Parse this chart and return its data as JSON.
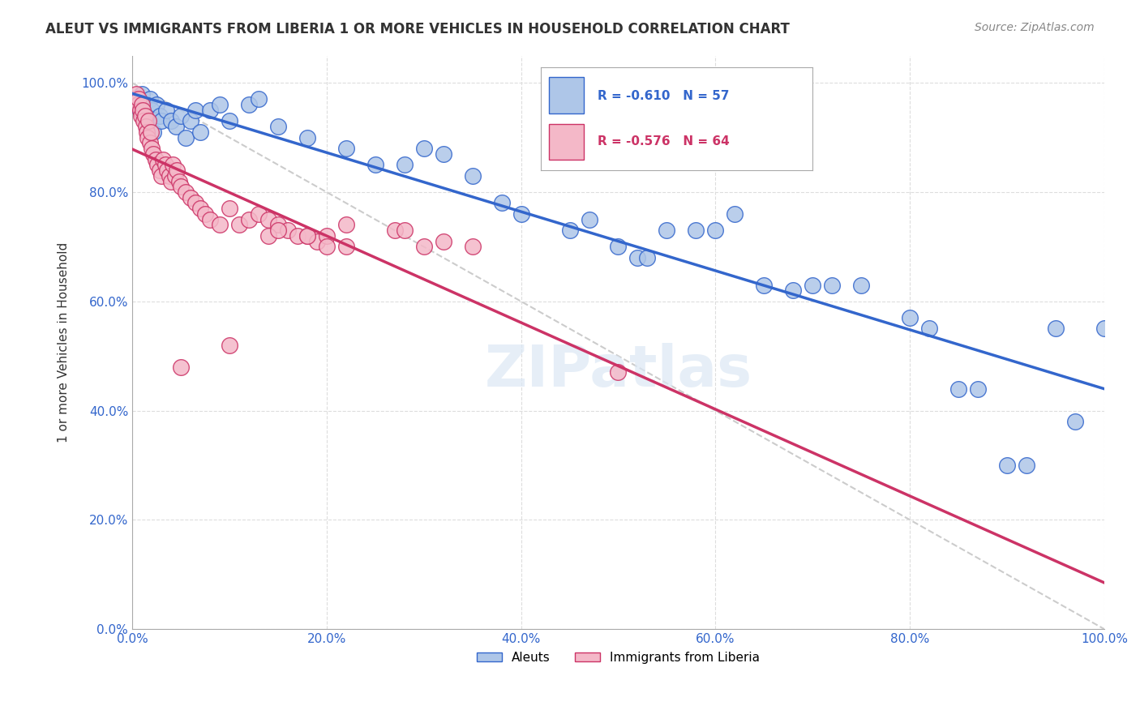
{
  "title": "ALEUT VS IMMIGRANTS FROM LIBERIA 1 OR MORE VEHICLES IN HOUSEHOLD CORRELATION CHART",
  "source": "Source: ZipAtlas.com",
  "ylabel": "1 or more Vehicles in Household",
  "legend_blue_r": "R = -0.610",
  "legend_blue_n": "N = 57",
  "legend_pink_r": "R = -0.576",
  "legend_pink_n": "N = 64",
  "legend_label_blue": "Aleuts",
  "legend_label_pink": "Immigrants from Liberia",
  "blue_color": "#aec6e8",
  "blue_line_color": "#3366cc",
  "pink_color": "#f4b8c8",
  "pink_line_color": "#cc3366",
  "diag_line_color": "#cccccc",
  "background_color": "#ffffff",
  "watermark": "ZIPatlas",
  "blue_points": [
    [
      0.005,
      0.97
    ],
    [
      0.008,
      0.95
    ],
    [
      0.01,
      0.98
    ],
    [
      0.012,
      0.96
    ],
    [
      0.015,
      0.93
    ],
    [
      0.018,
      0.97
    ],
    [
      0.02,
      0.95
    ],
    [
      0.022,
      0.91
    ],
    [
      0.025,
      0.96
    ],
    [
      0.028,
      0.94
    ],
    [
      0.03,
      0.93
    ],
    [
      0.035,
      0.95
    ],
    [
      0.04,
      0.93
    ],
    [
      0.045,
      0.92
    ],
    [
      0.05,
      0.94
    ],
    [
      0.055,
      0.9
    ],
    [
      0.06,
      0.93
    ],
    [
      0.065,
      0.95
    ],
    [
      0.07,
      0.91
    ],
    [
      0.08,
      0.95
    ],
    [
      0.09,
      0.96
    ],
    [
      0.1,
      0.93
    ],
    [
      0.12,
      0.96
    ],
    [
      0.13,
      0.97
    ],
    [
      0.15,
      0.92
    ],
    [
      0.18,
      0.9
    ],
    [
      0.22,
      0.88
    ],
    [
      0.25,
      0.85
    ],
    [
      0.28,
      0.85
    ],
    [
      0.3,
      0.88
    ],
    [
      0.32,
      0.87
    ],
    [
      0.35,
      0.83
    ],
    [
      0.38,
      0.78
    ],
    [
      0.4,
      0.76
    ],
    [
      0.45,
      0.73
    ],
    [
      0.47,
      0.75
    ],
    [
      0.5,
      0.7
    ],
    [
      0.52,
      0.68
    ],
    [
      0.53,
      0.68
    ],
    [
      0.55,
      0.73
    ],
    [
      0.58,
      0.73
    ],
    [
      0.6,
      0.73
    ],
    [
      0.62,
      0.76
    ],
    [
      0.65,
      0.63
    ],
    [
      0.68,
      0.62
    ],
    [
      0.7,
      0.63
    ],
    [
      0.72,
      0.63
    ],
    [
      0.75,
      0.63
    ],
    [
      0.8,
      0.57
    ],
    [
      0.82,
      0.55
    ],
    [
      0.85,
      0.44
    ],
    [
      0.87,
      0.44
    ],
    [
      0.9,
      0.3
    ],
    [
      0.92,
      0.3
    ],
    [
      0.95,
      0.55
    ],
    [
      0.97,
      0.38
    ],
    [
      1.0,
      0.55
    ]
  ],
  "pink_points": [
    [
      0.002,
      0.97
    ],
    [
      0.004,
      0.98
    ],
    [
      0.006,
      0.96
    ],
    [
      0.007,
      0.97
    ],
    [
      0.008,
      0.95
    ],
    [
      0.009,
      0.94
    ],
    [
      0.01,
      0.96
    ],
    [
      0.011,
      0.95
    ],
    [
      0.012,
      0.93
    ],
    [
      0.013,
      0.94
    ],
    [
      0.014,
      0.92
    ],
    [
      0.015,
      0.91
    ],
    [
      0.016,
      0.9
    ],
    [
      0.017,
      0.93
    ],
    [
      0.018,
      0.89
    ],
    [
      0.019,
      0.91
    ],
    [
      0.02,
      0.88
    ],
    [
      0.022,
      0.87
    ],
    [
      0.024,
      0.86
    ],
    [
      0.026,
      0.85
    ],
    [
      0.028,
      0.84
    ],
    [
      0.03,
      0.83
    ],
    [
      0.032,
      0.86
    ],
    [
      0.034,
      0.85
    ],
    [
      0.036,
      0.84
    ],
    [
      0.038,
      0.83
    ],
    [
      0.04,
      0.82
    ],
    [
      0.042,
      0.85
    ],
    [
      0.044,
      0.83
    ],
    [
      0.046,
      0.84
    ],
    [
      0.048,
      0.82
    ],
    [
      0.05,
      0.81
    ],
    [
      0.055,
      0.8
    ],
    [
      0.06,
      0.79
    ],
    [
      0.065,
      0.78
    ],
    [
      0.07,
      0.77
    ],
    [
      0.075,
      0.76
    ],
    [
      0.08,
      0.75
    ],
    [
      0.09,
      0.74
    ],
    [
      0.1,
      0.77
    ],
    [
      0.11,
      0.74
    ],
    [
      0.12,
      0.75
    ],
    [
      0.13,
      0.76
    ],
    [
      0.14,
      0.75
    ],
    [
      0.15,
      0.74
    ],
    [
      0.16,
      0.73
    ],
    [
      0.17,
      0.72
    ],
    [
      0.18,
      0.72
    ],
    [
      0.19,
      0.71
    ],
    [
      0.2,
      0.72
    ],
    [
      0.22,
      0.7
    ],
    [
      0.05,
      0.48
    ],
    [
      0.1,
      0.52
    ],
    [
      0.14,
      0.72
    ],
    [
      0.15,
      0.73
    ],
    [
      0.18,
      0.72
    ],
    [
      0.2,
      0.7
    ],
    [
      0.22,
      0.74
    ],
    [
      0.27,
      0.73
    ],
    [
      0.28,
      0.73
    ],
    [
      0.3,
      0.7
    ],
    [
      0.32,
      0.71
    ],
    [
      0.35,
      0.7
    ],
    [
      0.5,
      0.47
    ]
  ],
  "xlim": [
    0.0,
    1.0
  ],
  "ylim": [
    0.0,
    1.05
  ],
  "xticks": [
    0.0,
    0.2,
    0.4,
    0.6,
    0.8,
    1.0
  ],
  "yticks": [
    0.0,
    0.2,
    0.4,
    0.6,
    0.8,
    1.0
  ],
  "xticklabels": [
    "0.0%",
    "20.0%",
    "40.0%",
    "60.0%",
    "80.0%",
    "100.0%"
  ],
  "yticklabels": [
    "0.0%",
    "20.0%",
    "40.0%",
    "60.0%",
    "80.0%",
    "100.0%"
  ]
}
